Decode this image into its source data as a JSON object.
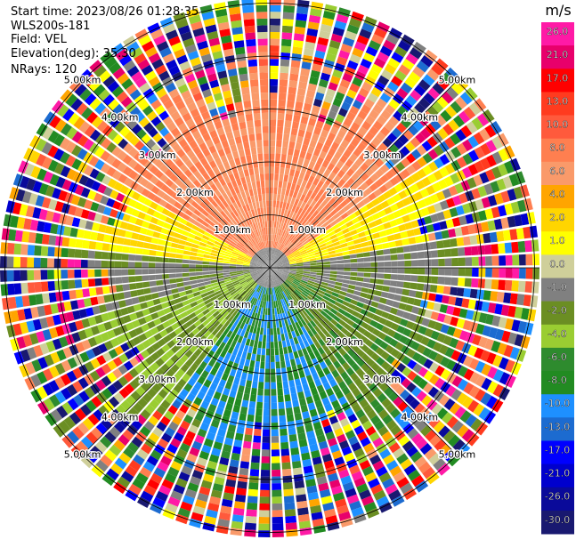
{
  "header": {
    "start_time": "Start time: 2023/08/26 01:28:35",
    "instrument": "WLS200s-181",
    "field": "Field: VEL",
    "elevation": "Elevation(deg): 35.30",
    "nrays": "NRays: 120"
  },
  "chart_data": {
    "type": "heatmap",
    "projection": "polar PPI",
    "field": "VEL",
    "units": "m/s",
    "n_rays": 120,
    "range_rings": [
      {
        "label": "1.00km",
        "km": 1.0
      },
      {
        "label": "2.00km",
        "km": 2.0
      },
      {
        "label": "3.00km",
        "km": 3.0
      },
      {
        "label": "4.00km",
        "km": 4.0
      },
      {
        "label": "5.00km",
        "km": 5.0
      }
    ],
    "colorbar": {
      "title": "m/s",
      "tick_labels": [
        "26.0",
        "21.0",
        "17.0",
        "13.0",
        "10.0",
        "8.0",
        "6.0",
        "4.0",
        "2.0",
        "1.0",
        "0.0",
        "-1.0",
        "-2.0",
        "-4.0",
        "-6.0",
        "-8.0",
        "-10.0",
        "-13.0",
        "-17.0",
        "-21.0",
        "-26.0",
        "-30.0"
      ],
      "colors": [
        "#ff1aa6",
        "#e8006b",
        "#ff0000",
        "#ff3b1f",
        "#ff5a3c",
        "#ff7f50",
        "#fa9a6a",
        "#ffa500",
        "#ffd500",
        "#ffff00",
        "#cfcf9a",
        "#808080",
        "#6b8e23",
        "#9acd32",
        "#2e8b2e",
        "#228b22",
        "#1e90ff",
        "#1c6bd0",
        "#0000ff",
        "#0000cd",
        "#0a0a9a",
        "#191970"
      ]
    },
    "pattern": {
      "north": "orange-red (positive 6-10 m/s)",
      "east": "grey (~0 m/s)",
      "south": "green to blue (negative -4 to -10 m/s)",
      "west": "yellow/green",
      "outer_ring_km": "beyond ~3.5 km noisy"
    }
  }
}
